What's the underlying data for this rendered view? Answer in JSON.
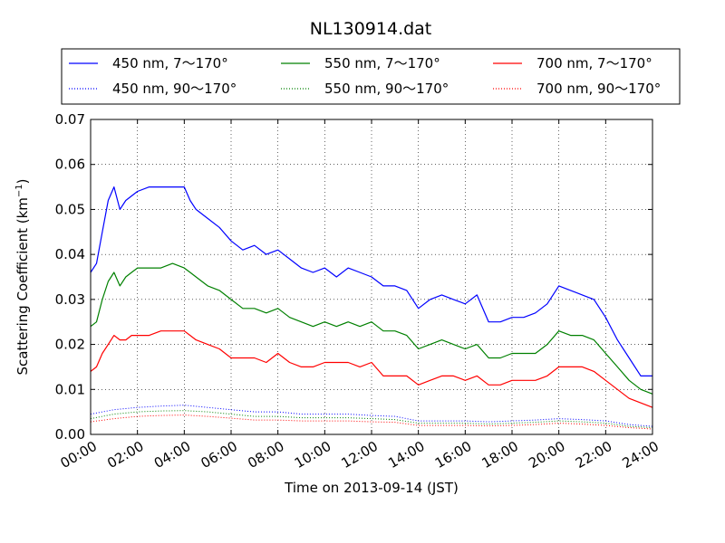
{
  "chart_data": {
    "type": "line",
    "title": "NL130914.dat",
    "xlabel": "Time on 2013-09-14 (JST)",
    "ylabel": "Scattering Coefficient (km",
    "ylabel_sup": "−1",
    "ylabel_close": ")",
    "xlim": [
      0,
      24
    ],
    "ylim": [
      0,
      0.07
    ],
    "x_ticks": [
      0,
      2,
      4,
      6,
      8,
      10,
      12,
      14,
      16,
      18,
      20,
      22,
      24
    ],
    "x_tick_labels": [
      "00:00",
      "02:00",
      "04:00",
      "06:00",
      "08:00",
      "10:00",
      "12:00",
      "14:00",
      "16:00",
      "18:00",
      "20:00",
      "22:00",
      "24:00"
    ],
    "y_ticks": [
      0,
      0.01,
      0.02,
      0.03,
      0.04,
      0.05,
      0.06,
      0.07
    ],
    "y_tick_labels": [
      "0.00",
      "0.01",
      "0.02",
      "0.03",
      "0.04",
      "0.05",
      "0.06",
      "0.07"
    ],
    "grid": true,
    "legend_position": "top",
    "series": [
      {
        "name": "450 nm, 7～170°",
        "color": "#0000ff",
        "style": "solid",
        "x": [
          0,
          0.25,
          0.5,
          0.75,
          1,
          1.25,
          1.5,
          1.75,
          2,
          2.5,
          3,
          3.5,
          4,
          4.25,
          4.5,
          5,
          5.5,
          6,
          6.5,
          7,
          7.5,
          8,
          8.5,
          9,
          9.5,
          10,
          10.5,
          11,
          11.5,
          12,
          12.5,
          13,
          13.5,
          14,
          14.5,
          15,
          15.5,
          16,
          16.5,
          17,
          17.5,
          18,
          18.5,
          19,
          19.5,
          20,
          20.5,
          21,
          21.5,
          22,
          22.5,
          23,
          23.5,
          24
        ],
        "y": [
          0.036,
          0.038,
          0.045,
          0.052,
          0.055,
          0.05,
          0.052,
          0.053,
          0.054,
          0.055,
          0.055,
          0.055,
          0.055,
          0.052,
          0.05,
          0.048,
          0.046,
          0.043,
          0.041,
          0.042,
          0.04,
          0.041,
          0.039,
          0.037,
          0.036,
          0.037,
          0.035,
          0.037,
          0.036,
          0.035,
          0.033,
          0.033,
          0.032,
          0.028,
          0.03,
          0.031,
          0.03,
          0.029,
          0.031,
          0.025,
          0.025,
          0.026,
          0.026,
          0.027,
          0.029,
          0.033,
          0.032,
          0.031,
          0.03,
          0.026,
          0.021,
          0.017,
          0.013,
          0.013
        ]
      },
      {
        "name": "550 nm, 7～170°",
        "color": "#008000",
        "style": "solid",
        "x": [
          0,
          0.25,
          0.5,
          0.75,
          1,
          1.25,
          1.5,
          1.75,
          2,
          2.5,
          3,
          3.5,
          4,
          4.25,
          4.5,
          5,
          5.5,
          6,
          6.5,
          7,
          7.5,
          8,
          8.5,
          9,
          9.5,
          10,
          10.5,
          11,
          11.5,
          12,
          12.5,
          13,
          13.5,
          14,
          14.5,
          15,
          15.5,
          16,
          16.5,
          17,
          17.5,
          18,
          18.5,
          19,
          19.5,
          20,
          20.5,
          21,
          21.5,
          22,
          22.5,
          23,
          23.5,
          24
        ],
        "y": [
          0.024,
          0.025,
          0.03,
          0.034,
          0.036,
          0.033,
          0.035,
          0.036,
          0.037,
          0.037,
          0.037,
          0.038,
          0.037,
          0.036,
          0.035,
          0.033,
          0.032,
          0.03,
          0.028,
          0.028,
          0.027,
          0.028,
          0.026,
          0.025,
          0.024,
          0.025,
          0.024,
          0.025,
          0.024,
          0.025,
          0.023,
          0.023,
          0.022,
          0.019,
          0.02,
          0.021,
          0.02,
          0.019,
          0.02,
          0.017,
          0.017,
          0.018,
          0.018,
          0.018,
          0.02,
          0.023,
          0.022,
          0.022,
          0.021,
          0.018,
          0.015,
          0.012,
          0.01,
          0.009
        ]
      },
      {
        "name": "700 nm, 7～170°",
        "color": "#ff0000",
        "style": "solid",
        "x": [
          0,
          0.25,
          0.5,
          0.75,
          1,
          1.25,
          1.5,
          1.75,
          2,
          2.5,
          3,
          3.5,
          4,
          4.25,
          4.5,
          5,
          5.5,
          6,
          6.5,
          7,
          7.5,
          8,
          8.5,
          9,
          9.5,
          10,
          10.5,
          11,
          11.5,
          12,
          12.5,
          13,
          13.5,
          14,
          14.5,
          15,
          15.5,
          16,
          16.5,
          17,
          17.5,
          18,
          18.5,
          19,
          19.5,
          20,
          20.5,
          21,
          21.5,
          22,
          22.5,
          23,
          23.5,
          24
        ],
        "y": [
          0.014,
          0.015,
          0.018,
          0.02,
          0.022,
          0.021,
          0.021,
          0.022,
          0.022,
          0.022,
          0.023,
          0.023,
          0.023,
          0.022,
          0.021,
          0.02,
          0.019,
          0.017,
          0.017,
          0.017,
          0.016,
          0.018,
          0.016,
          0.015,
          0.015,
          0.016,
          0.016,
          0.016,
          0.015,
          0.016,
          0.013,
          0.013,
          0.013,
          0.011,
          0.012,
          0.013,
          0.013,
          0.012,
          0.013,
          0.011,
          0.011,
          0.012,
          0.012,
          0.012,
          0.013,
          0.015,
          0.015,
          0.015,
          0.014,
          0.012,
          0.01,
          0.008,
          0.007,
          0.006
        ]
      },
      {
        "name": "450 nm, 90～170°",
        "color": "#0000ff",
        "style": "dotted",
        "x": [
          0,
          1,
          2,
          3,
          4,
          5,
          6,
          7,
          8,
          9,
          10,
          11,
          12,
          13,
          14,
          15,
          16,
          17,
          18,
          19,
          20,
          21,
          22,
          23,
          24
        ],
        "y": [
          0.0045,
          0.0055,
          0.006,
          0.0063,
          0.0065,
          0.006,
          0.0055,
          0.005,
          0.005,
          0.0045,
          0.0045,
          0.0045,
          0.0042,
          0.004,
          0.003,
          0.003,
          0.003,
          0.0028,
          0.003,
          0.0032,
          0.0035,
          0.0033,
          0.003,
          0.0022,
          0.0018
        ]
      },
      {
        "name": "550 nm, 90～170°",
        "color": "#008000",
        "style": "dotted",
        "x": [
          0,
          1,
          2,
          3,
          4,
          5,
          6,
          7,
          8,
          9,
          10,
          11,
          12,
          13,
          14,
          15,
          16,
          17,
          18,
          19,
          20,
          21,
          22,
          23,
          24
        ],
        "y": [
          0.0035,
          0.0045,
          0.005,
          0.0052,
          0.0053,
          0.005,
          0.0045,
          0.004,
          0.004,
          0.0037,
          0.0037,
          0.0037,
          0.0035,
          0.0033,
          0.0025,
          0.0025,
          0.0025,
          0.0023,
          0.0025,
          0.0027,
          0.003,
          0.0028,
          0.0025,
          0.0018,
          0.0015
        ]
      },
      {
        "name": "700 nm, 90～170°",
        "color": "#ff0000",
        "style": "dotted",
        "x": [
          0,
          1,
          2,
          3,
          4,
          5,
          6,
          7,
          8,
          9,
          10,
          11,
          12,
          13,
          14,
          15,
          16,
          17,
          18,
          19,
          20,
          21,
          22,
          23,
          24
        ],
        "y": [
          0.0028,
          0.0035,
          0.004,
          0.0042,
          0.0043,
          0.004,
          0.0036,
          0.0032,
          0.0032,
          0.003,
          0.003,
          0.003,
          0.0028,
          0.0027,
          0.002,
          0.002,
          0.002,
          0.0019,
          0.002,
          0.0022,
          0.0025,
          0.0023,
          0.002,
          0.0015,
          0.0012
        ]
      }
    ]
  }
}
